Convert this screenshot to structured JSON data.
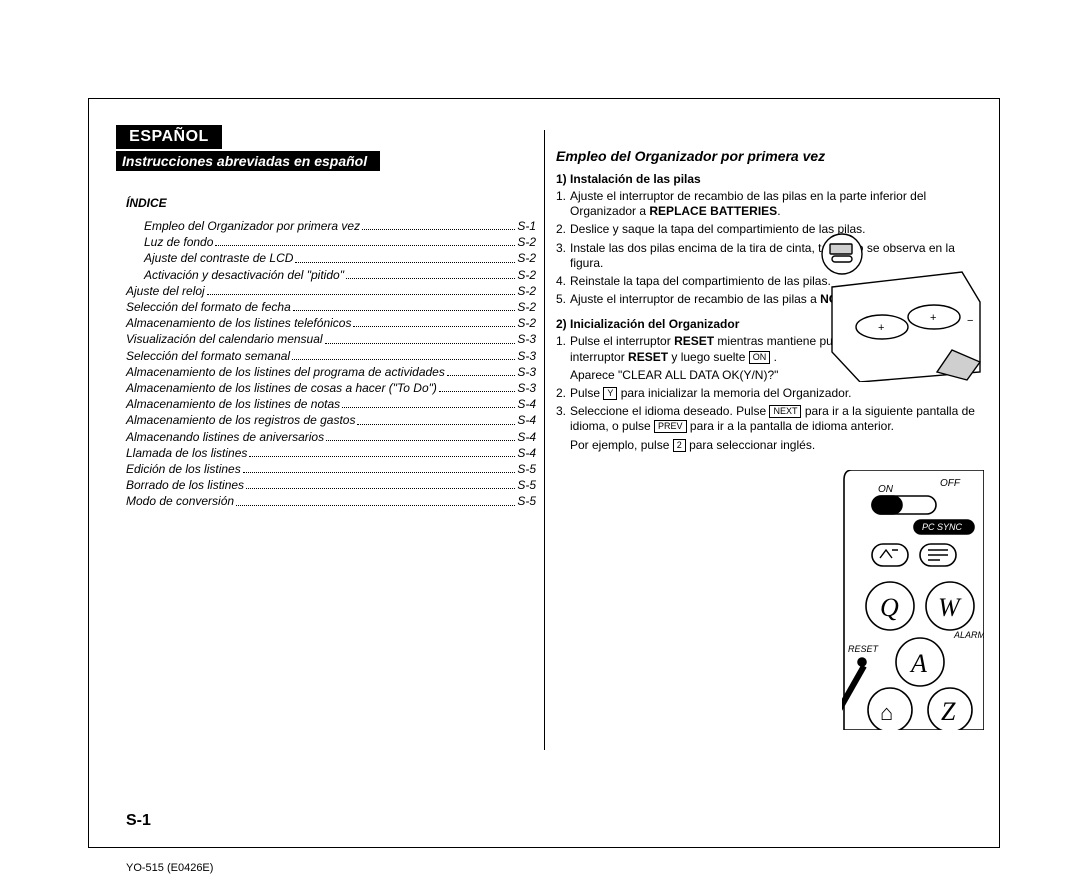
{
  "language_label": "ESPAÑOL",
  "subtitle": "Instrucciones abreviadas en español",
  "index_heading": "Índice",
  "index": [
    {
      "label": "Empleo del Organizador por primera vez",
      "page": "S-1",
      "indent": true
    },
    {
      "label": "Luz de fondo",
      "page": "S-2",
      "indent": true
    },
    {
      "label": "Ajuste del contraste de LCD",
      "page": "S-2",
      "indent": true
    },
    {
      "label": "Activación y desactivación del \"pitido\"",
      "page": "S-2",
      "indent": true
    },
    {
      "label": "Ajuste del reloj",
      "page": "S-2",
      "indent": false
    },
    {
      "label": "Selección del formato de fecha",
      "page": "S-2",
      "indent": false
    },
    {
      "label": "Almacenamiento de los listines telefónicos",
      "page": "S-2",
      "indent": false
    },
    {
      "label": "Visualización del calendario mensual",
      "page": "S-3",
      "indent": false
    },
    {
      "label": "Selección del formato semanal",
      "page": "S-3",
      "indent": false
    },
    {
      "label": "Almacenamiento de los listines del programa de actividades",
      "page": "S-3",
      "indent": false
    },
    {
      "label": "Almacenamiento de los listines de cosas a hacer (\"To Do\")",
      "page": "S-3",
      "indent": false
    },
    {
      "label": "Almacenamiento de los listines de notas",
      "page": "S-4",
      "indent": false
    },
    {
      "label": "Almacenamiento de los registros de gastos",
      "page": "S-4",
      "indent": false
    },
    {
      "label": "Almacenando listines de aniversarios",
      "page": "S-4",
      "indent": false
    },
    {
      "label": "Llamada de los listines",
      "page": "S-4",
      "indent": false
    },
    {
      "label": "Edición de los listines",
      "page": "S-5",
      "indent": false
    },
    {
      "label": "Borrado de los listines",
      "page": "S-5",
      "indent": false
    },
    {
      "label": "Modo de conversión",
      "page": "S-5",
      "indent": false
    }
  ],
  "right_section_title": "Empleo del Organizador por primera vez",
  "sub1_title": "1) Instalación de las pilas",
  "sub1_steps": [
    {
      "num": "1.",
      "html": "Ajuste el interruptor de recambio de las pilas en la parte inferior del Organizador a <b>REPLACE BATTERIES</b>.",
      "narrow": false
    },
    {
      "num": "2.",
      "html": "Deslice y saque la tapa del compartimiento de las pilas.",
      "narrow": true
    },
    {
      "num": "3.",
      "html": "Instale las dos pilas encima de la tira de cinta, tal como se observa en la figura.",
      "narrow": true
    },
    {
      "num": "4.",
      "html": "Reinstale la tapa del compartimiento de las pilas.",
      "narrow": true
    },
    {
      "num": "5.",
      "html": "Ajuste el interruptor de recambio de las pilas a <b>NORMAL OPERATION</b>.",
      "narrow": true
    }
  ],
  "sub2_title": "2) Inicialización del Organizador",
  "sub2_steps": [
    {
      "num": "1.",
      "html": "Pulse el interruptor <b>RESET</b> mientras mantiene pulsado <span class=\"keycap\">ON</span> . Suelte el interruptor <b>RESET</b> y luego suelte <span class=\"keycap\">ON</span> .",
      "narrow": true
    },
    {
      "num": "",
      "html": "Aparece \"CLEAR ALL DATA  OK(Y/N)?\"",
      "narrow": true
    },
    {
      "num": "2.",
      "html": "Pulse <span class=\"keycap\">Y</span> para inicializar la memoria del Organizador.",
      "narrow": true
    },
    {
      "num": "3.",
      "html": "Seleccione el idioma deseado. Pulse <span class=\"keycap\">NEXT</span> para ir a la siguiente pantalla de idioma, o pulse <span class=\"keycap\">PREV</span> para ir a la pantalla de idioma anterior.",
      "narrow": true
    },
    {
      "num": "",
      "html": "Por ejemplo, pulse <span class=\"keycap\">2</span> para seleccionar inglés.",
      "narrow": true
    }
  ],
  "page_number": "S-1",
  "doc_id": "YO-515 (E0426E)",
  "figure1": {
    "desc": "battery compartment illustration",
    "circle_labels": [
      "+",
      "−"
    ],
    "colors": {
      "line": "#000000",
      "fill": "#ffffff",
      "shade": "#cfcfcf"
    }
  },
  "figure2": {
    "desc": "keyboard / reset illustration",
    "switch_labels": [
      "ON",
      "OFF"
    ],
    "badge": "PC SYNC",
    "side_labels": [
      "ALARM",
      "RESET"
    ],
    "keys": [
      "Q",
      "W",
      "A",
      "Z"
    ],
    "house_icon": "⌂",
    "colors": {
      "line": "#000000",
      "fill": "#ffffff",
      "badge_bg": "#000000",
      "badge_fg": "#ffffff"
    }
  },
  "style": {
    "page_bg": "#ffffff",
    "ink": "#000000",
    "lang_block_bg": "#000000",
    "lang_block_fg": "#ffffff",
    "body_font_size_pt": 9,
    "title_font_size_pt": 11,
    "italic_index": true
  }
}
